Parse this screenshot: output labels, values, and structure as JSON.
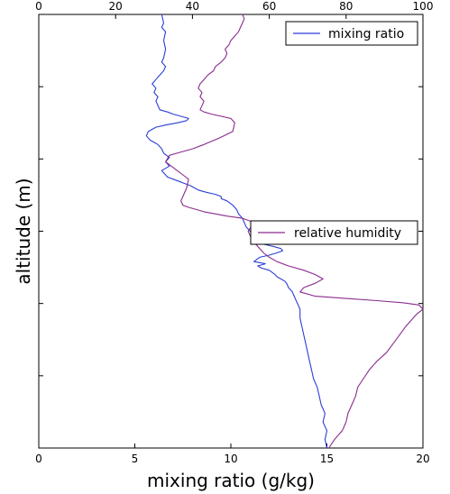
{
  "chart_data": {
    "type": "line",
    "xlabel": "mixing ratio (g/kg)",
    "ylabel": "altitude (m)",
    "bottom_axis": {
      "label": "mixing ratio (g/kg)",
      "range": [
        0,
        20
      ],
      "ticks": [
        0,
        5,
        10,
        15,
        20
      ]
    },
    "top_axis": {
      "range": [
        0,
        100
      ],
      "ticks": [
        0,
        20,
        40,
        60,
        80,
        100
      ]
    },
    "y_tick_count": 6,
    "grid": false,
    "series": [
      {
        "name": "mixing ratio",
        "axis": "bottom",
        "color": "#2b3fd6",
        "legend_position": "top-right",
        "note": "x in g/kg, y as fraction of altitude from bottom (0) to top (1)",
        "x": [
          15.0,
          14.9,
          15.0,
          14.8,
          14.9,
          14.7,
          14.6,
          14.5,
          14.3,
          14.2,
          14.1,
          14.0,
          13.9,
          13.8,
          13.7,
          13.6,
          13.6,
          13.5,
          13.4,
          13.3,
          13.2,
          13.0,
          12.9,
          12.8,
          12.6,
          12.4,
          12.3,
          12.0,
          11.6,
          11.4,
          11.8,
          11.2,
          11.5,
          12.0,
          12.4,
          12.7,
          12.6,
          12.2,
          11.7,
          11.4,
          11.2,
          11.0,
          10.8,
          10.7,
          10.6,
          10.4,
          10.3,
          10.1,
          9.8,
          9.5,
          9.5,
          9.2,
          8.7,
          8.3,
          8.1,
          7.9,
          7.6,
          7.3,
          7.0,
          6.7,
          6.6,
          6.4,
          6.8,
          6.6,
          6.8,
          6.5,
          6.4,
          6.2,
          6.0,
          5.8,
          5.6,
          5.7,
          6.1,
          6.6,
          7.2,
          7.7,
          7.8,
          7.4,
          7.0,
          6.7,
          6.3,
          6.2,
          6.1,
          6.2,
          6.0,
          6.1,
          5.9,
          6.1,
          6.3,
          6.5,
          6.6,
          6.4,
          6.5,
          6.6,
          6.5,
          6.6,
          6.4,
          6.5,
          6.4
        ],
        "y": [
          0.0,
          0.02,
          0.04,
          0.06,
          0.08,
          0.1,
          0.12,
          0.14,
          0.16,
          0.18,
          0.2,
          0.22,
          0.24,
          0.26,
          0.28,
          0.3,
          0.32,
          0.33,
          0.34,
          0.35,
          0.36,
          0.37,
          0.38,
          0.385,
          0.39,
          0.395,
          0.4,
          0.41,
          0.415,
          0.42,
          0.425,
          0.43,
          0.44,
          0.445,
          0.45,
          0.455,
          0.46,
          0.465,
          0.47,
          0.48,
          0.49,
          0.5,
          0.51,
          0.52,
          0.53,
          0.54,
          0.55,
          0.56,
          0.57,
          0.575,
          0.58,
          0.585,
          0.59,
          0.595,
          0.6,
          0.605,
          0.61,
          0.615,
          0.62,
          0.625,
          0.63,
          0.64,
          0.65,
          0.66,
          0.67,
          0.68,
          0.69,
          0.7,
          0.705,
          0.71,
          0.72,
          0.73,
          0.74,
          0.745,
          0.75,
          0.755,
          0.76,
          0.765,
          0.77,
          0.775,
          0.78,
          0.79,
          0.8,
          0.81,
          0.82,
          0.83,
          0.84,
          0.85,
          0.86,
          0.87,
          0.88,
          0.89,
          0.9,
          0.92,
          0.94,
          0.96,
          0.97,
          0.98,
          1.0
        ]
      },
      {
        "name": "relative humidity",
        "axis": "top",
        "color": "#8a2b8f",
        "legend_position": "center-right",
        "note": "x in %, y as fraction of altitude from bottom (0) to top (1)",
        "x": [
          75.5,
          77.0,
          79.0,
          80.0,
          80.5,
          81.5,
          82.5,
          83.0,
          84.5,
          86.0,
          88.0,
          90.5,
          93.0,
          95.5,
          98.5,
          100.0,
          99.0,
          95.0,
          88.0,
          80.0,
          72.0,
          68.0,
          69.0,
          72.0,
          74.0,
          72.0,
          69.0,
          65.0,
          62.0,
          60.0,
          58.5,
          57.5,
          56.5,
          55.5,
          55.0,
          54.5,
          56.0,
          53.0,
          49.0,
          46.0,
          43.0,
          41.0,
          39.0,
          37.5,
          37.0,
          37.5,
          38.5,
          39.0,
          37.5,
          36.0,
          34.5,
          33.0,
          34.0,
          36.0,
          38.0,
          40.0,
          43.0,
          47.0,
          50.5,
          51.0,
          50.0,
          47.5,
          45.0,
          43.0,
          42.0,
          43.0,
          42.0,
          42.5,
          41.5,
          42.0,
          43.0,
          44.0,
          45.5,
          46.0,
          47.5,
          48.5,
          49.0,
          48.5,
          49.5,
          50.0,
          51.0,
          52.0,
          52.5,
          53.0,
          53.5,
          53.0
        ],
        "y": [
          0.0,
          0.02,
          0.04,
          0.06,
          0.08,
          0.1,
          0.12,
          0.14,
          0.16,
          0.18,
          0.2,
          0.22,
          0.25,
          0.28,
          0.31,
          0.32,
          0.33,
          0.335,
          0.34,
          0.345,
          0.35,
          0.36,
          0.37,
          0.38,
          0.39,
          0.4,
          0.41,
          0.42,
          0.43,
          0.44,
          0.45,
          0.46,
          0.47,
          0.48,
          0.49,
          0.5,
          0.52,
          0.53,
          0.535,
          0.54,
          0.545,
          0.55,
          0.555,
          0.56,
          0.57,
          0.58,
          0.6,
          0.62,
          0.63,
          0.64,
          0.65,
          0.66,
          0.675,
          0.68,
          0.685,
          0.69,
          0.7,
          0.715,
          0.73,
          0.75,
          0.76,
          0.765,
          0.77,
          0.775,
          0.78,
          0.8,
          0.81,
          0.82,
          0.83,
          0.84,
          0.85,
          0.86,
          0.87,
          0.88,
          0.89,
          0.9,
          0.91,
          0.92,
          0.93,
          0.94,
          0.95,
          0.96,
          0.97,
          0.98,
          0.99,
          1.0
        ]
      }
    ]
  }
}
